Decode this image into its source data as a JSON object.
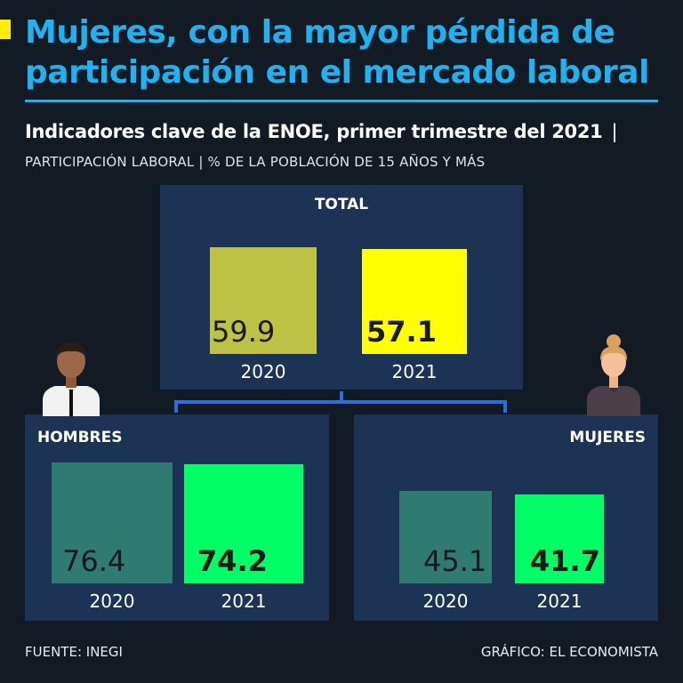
{
  "header": {
    "title": "Mujeres, con la mayor pérdida de participación en el mercado laboral",
    "subtitle": "Indicadores clave de la ENOE, primer trimestre del 2021",
    "subtitle_sep": "|",
    "subhead": "PARTICIPACIÓN LABORAL | % DE LA POBLACIÓN DE 15 AÑOS Y MÁS"
  },
  "footer": {
    "source": "FUENTE: INEGI",
    "credit": "GRÁFICO: EL ECONOMISTA"
  },
  "colors": {
    "title": "#1fb2ef",
    "accent": "#ffef00",
    "panel": "#1c3356",
    "total_2020": "#bcc244",
    "total_2021": "#ffff00",
    "group_2020": "#2f7b72",
    "group_2021": "#00ff66",
    "connector": "#2a6fe0"
  },
  "icons": [
    "man-avatar-icon",
    "woman-avatar-icon"
  ],
  "chart_data": [
    {
      "type": "bar",
      "title": "TOTAL",
      "categories": [
        "2020",
        "2021"
      ],
      "values": [
        59.9,
        57.1
      ],
      "value_labels": [
        "59.9",
        "57.1"
      ]
    },
    {
      "type": "bar",
      "title": "HOMBRES",
      "categories": [
        "2020",
        "2021"
      ],
      "values": [
        76.4,
        74.2
      ],
      "value_labels": [
        "76.4",
        "74.2"
      ]
    },
    {
      "type": "bar",
      "title": "MUJERES",
      "categories": [
        "2020",
        "2021"
      ],
      "values": [
        45.1,
        41.7
      ],
      "value_labels": [
        "45.1",
        "41.7"
      ]
    }
  ]
}
